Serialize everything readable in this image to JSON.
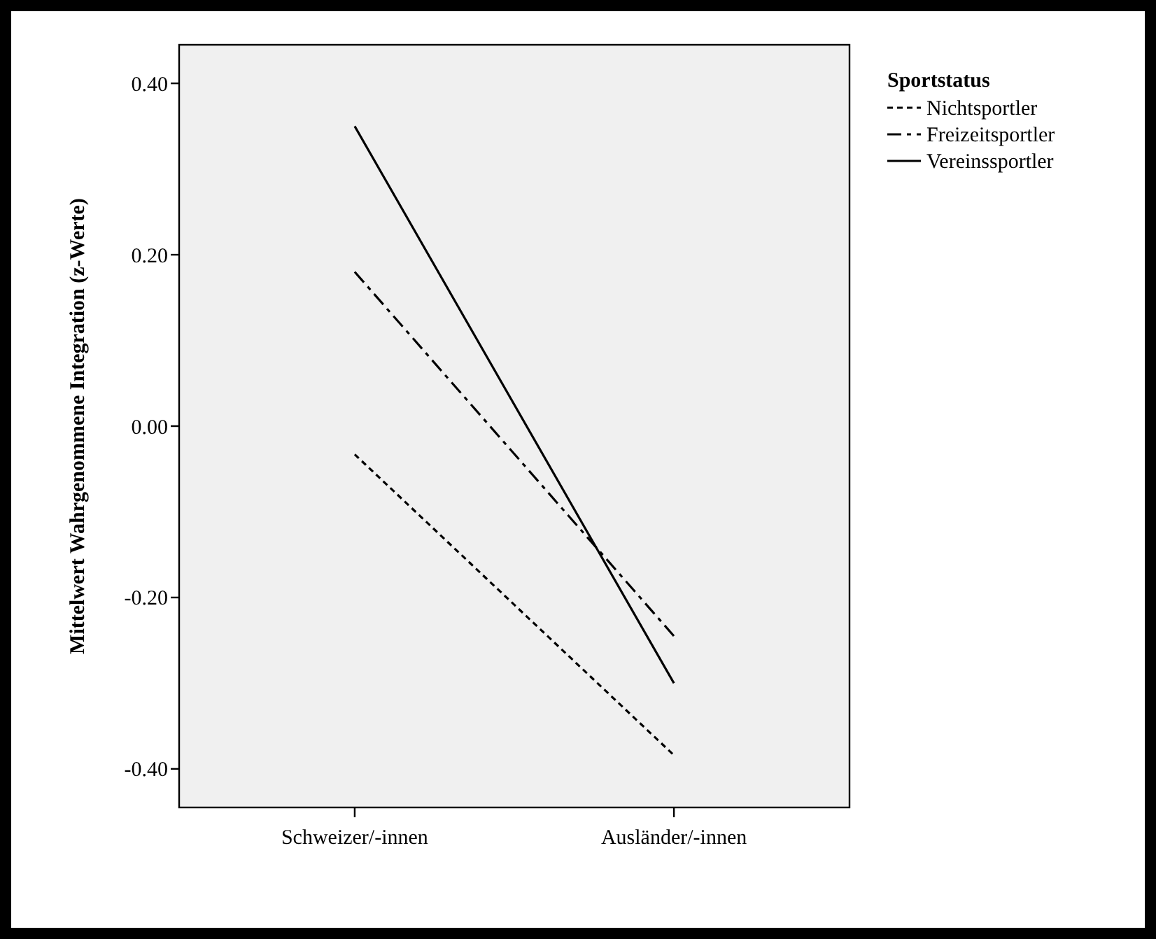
{
  "chart_data": {
    "type": "line",
    "ylabel": "Mittelwert Wahrgenommene Integration (z-Werte)",
    "legend_title": "Sportstatus",
    "legend": "top right",
    "categories": [
      "Schweizer/-innen",
      "Ausländer/-innen"
    ],
    "series": [
      {
        "name": "Nichtsportler",
        "color": "#000000",
        "line_style": "dotted",
        "values": [
          -0.033,
          -0.384
        ]
      },
      {
        "name": "Freizeitsportler",
        "color": "#000000",
        "line_style": "dashed",
        "values": [
          0.18,
          -0.245
        ]
      },
      {
        "name": "Vereinssportler",
        "color": "#000000",
        "line_style": "solid",
        "values": [
          0.35,
          -0.3
        ]
      }
    ],
    "ylim": [
      -0.445,
      0.445
    ],
    "yticks": [
      {
        "value": -0.4,
        "label": "-0.40"
      },
      {
        "value": -0.2,
        "label": "-0.20"
      },
      {
        "value": 0,
        "label": "0.00"
      },
      {
        "value": 0.2,
        "label": "0.20"
      },
      {
        "value": 0.4,
        "label": "0.40"
      }
    ],
    "marker": "none",
    "grid": false
  }
}
